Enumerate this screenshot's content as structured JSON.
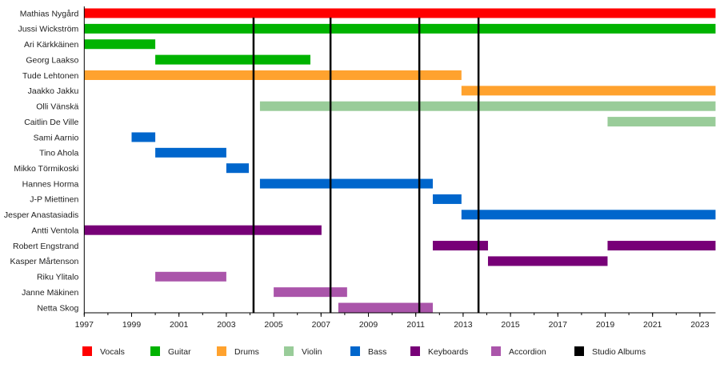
{
  "chart_data": {
    "type": "timeline",
    "xlim": [
      1997,
      2023.66
    ],
    "x_ticks": [
      1997,
      1999,
      2001,
      2003,
      2005,
      2007,
      2009,
      2011,
      2013,
      2015,
      2017,
      2019,
      2021,
      2023
    ],
    "minor_tick_step": 1,
    "grid": false,
    "legend_position": "bottom",
    "roles": [
      {
        "name": "Vocals",
        "color": "#FF0000"
      },
      {
        "name": "Guitar",
        "color": "#00B300"
      },
      {
        "name": "Drums",
        "color": "#FFA22E"
      },
      {
        "name": "Violin",
        "color": "#99CC99"
      },
      {
        "name": "Bass",
        "color": "#0066CC"
      },
      {
        "name": "Keyboards",
        "color": "#770077"
      },
      {
        "name": "Accordion",
        "color": "#AA55AA"
      },
      {
        "name": "Studio Albums",
        "color": "#000000"
      }
    ],
    "studio_albums": [
      2004.15,
      2007.4,
      2011.15,
      2013.65
    ],
    "members": [
      {
        "name": "Mathias Nygård",
        "periods": [
          {
            "role": "Vocals",
            "start": 1997,
            "end": 2023.66
          }
        ]
      },
      {
        "name": "Jussi Wickström",
        "periods": [
          {
            "role": "Guitar",
            "start": 1997,
            "end": 2023.66
          }
        ]
      },
      {
        "name": "Ari Kärkkäinen",
        "periods": [
          {
            "role": "Guitar",
            "start": 1997,
            "end": 2000
          }
        ]
      },
      {
        "name": "Georg Laakso",
        "periods": [
          {
            "role": "Guitar",
            "start": 2000,
            "end": 2006.55
          }
        ]
      },
      {
        "name": "Tude Lehtonen",
        "periods": [
          {
            "role": "Drums",
            "start": 1997,
            "end": 2012.93
          }
        ]
      },
      {
        "name": "Jaakko Jakku",
        "periods": [
          {
            "role": "Drums",
            "start": 2012.93,
            "end": 2023.66
          }
        ]
      },
      {
        "name": "Olli Vänskä",
        "periods": [
          {
            "role": "Violin",
            "start": 2004.42,
            "end": 2023.66
          }
        ]
      },
      {
        "name": "Caitlin De Ville",
        "periods": [
          {
            "role": "Violin",
            "start": 2019.1,
            "end": 2023.66
          }
        ]
      },
      {
        "name": "Sami Aarnio",
        "periods": [
          {
            "role": "Bass",
            "start": 1999,
            "end": 2000
          }
        ]
      },
      {
        "name": "Tino Ahola",
        "periods": [
          {
            "role": "Bass",
            "start": 2000,
            "end": 2003
          }
        ]
      },
      {
        "name": "Mikko Törmikoski",
        "periods": [
          {
            "role": "Bass",
            "start": 2003,
            "end": 2003.95
          }
        ]
      },
      {
        "name": "Hannes Horma",
        "periods": [
          {
            "role": "Bass",
            "start": 2004.42,
            "end": 2011.72
          }
        ]
      },
      {
        "name": "J-P Miettinen",
        "periods": [
          {
            "role": "Bass",
            "start": 2011.72,
            "end": 2012.93
          }
        ]
      },
      {
        "name": "Jesper Anastasiadis",
        "periods": [
          {
            "role": "Bass",
            "start": 2012.93,
            "end": 2023.66
          }
        ]
      },
      {
        "name": "Antti Ventola",
        "periods": [
          {
            "role": "Keyboards",
            "start": 1997,
            "end": 2007.02
          }
        ]
      },
      {
        "name": "Robert Engstrand",
        "periods": [
          {
            "role": "Keyboards",
            "start": 2011.72,
            "end": 2014.05
          },
          {
            "role": "Keyboards",
            "start": 2019.1,
            "end": 2023.66
          }
        ]
      },
      {
        "name": "Kasper Mårtenson",
        "periods": [
          {
            "role": "Keyboards",
            "start": 2014.05,
            "end": 2019.1
          }
        ]
      },
      {
        "name": "Riku Ylitalo",
        "periods": [
          {
            "role": "Accordion",
            "start": 2000,
            "end": 2003
          }
        ]
      },
      {
        "name": "Janne Mäkinen",
        "periods": [
          {
            "role": "Accordion",
            "start": 2005,
            "end": 2008.1
          }
        ]
      },
      {
        "name": "Netta Skog",
        "periods": [
          {
            "role": "Accordion",
            "start": 2007.73,
            "end": 2011.72
          }
        ]
      }
    ]
  }
}
